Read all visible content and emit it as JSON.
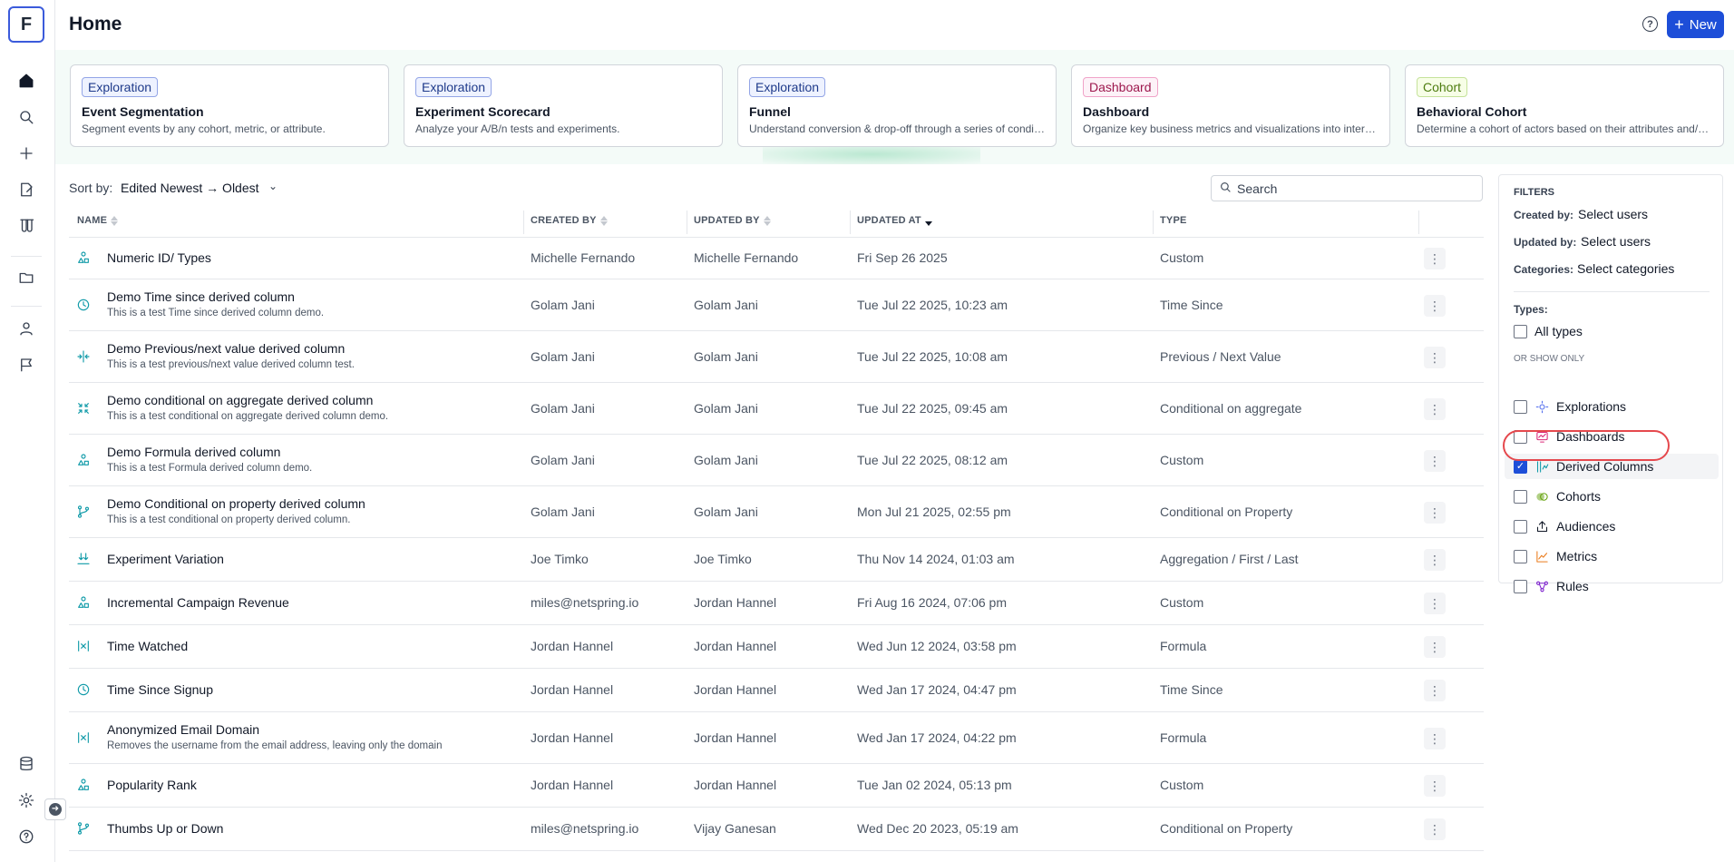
{
  "app": {
    "logo_letter": "F"
  },
  "header": {
    "title": "Home",
    "help_symbol": "?",
    "new_label": "New",
    "new_icon": "plus-icon"
  },
  "rail": {
    "icons": [
      "home-icon",
      "search-icon",
      "plus-icon",
      "notebook-icon",
      "lab-icon",
      "folder-icon",
      "user-icon",
      "flag-icon",
      "database-icon",
      "gear-icon",
      "help-icon"
    ],
    "expander_symbol": "➜"
  },
  "templates": [
    {
      "tag": "Exploration",
      "title": "Event Segmentation",
      "desc": "Segment events by any cohort, metric, or attribute."
    },
    {
      "tag": "Exploration",
      "title": "Experiment Scorecard",
      "desc": "Analyze your A/B/n tests and experiments."
    },
    {
      "tag": "Exploration",
      "title": "Funnel",
      "desc": "Understand conversion & drop-off through a series of conditi..."
    },
    {
      "tag": "Dashboard",
      "title": "Dashboard",
      "desc": "Organize key business metrics and visualizations into interacti..."
    },
    {
      "tag": "Cohort",
      "title": "Behavioral Cohort",
      "desc": "Determine a cohort of actors based on their attributes and/or ..."
    }
  ],
  "sort": {
    "label": "Sort by:",
    "value": "Edited Newest → Oldest"
  },
  "search": {
    "placeholder": "Search"
  },
  "table": {
    "columns": {
      "name": "NAME",
      "created_by": "CREATED BY",
      "updated_by": "UPDATED BY",
      "updated_at": "UPDATED AT",
      "type": "TYPE"
    },
    "rows": [
      {
        "icon": "custom-icon",
        "name": "Numeric ID/ Types",
        "desc": "",
        "created_by": "Michelle Fernando",
        "updated_by": "Michelle Fernando",
        "updated_at": "Fri Sep 26 2025",
        "type": "Custom"
      },
      {
        "icon": "clock-icon",
        "name": "Demo Time since derived column",
        "desc": "This is a test Time since derived column demo.",
        "created_by": "Golam Jani",
        "updated_by": "Golam Jani",
        "updated_at": "Tue Jul 22 2025, 10:23 am",
        "type": "Time Since"
      },
      {
        "icon": "prev-next-icon",
        "name": "Demo Previous/next value derived column",
        "desc": "This is a test previous/next value derived column test.",
        "created_by": "Golam Jani",
        "updated_by": "Golam Jani",
        "updated_at": "Tue Jul 22 2025, 10:08 am",
        "type": "Previous / Next Value"
      },
      {
        "icon": "aggregate-icon",
        "name": "Demo conditional on aggregate derived column",
        "desc": "This is a test conditional on aggregate derived column demo.",
        "created_by": "Golam Jani",
        "updated_by": "Golam Jani",
        "updated_at": "Tue Jul 22 2025, 09:45 am",
        "type": "Conditional on aggregate"
      },
      {
        "icon": "custom-icon",
        "name": "Demo Formula derived column",
        "desc": "This is a test Formula derived column demo.",
        "created_by": "Golam Jani",
        "updated_by": "Golam Jani",
        "updated_at": "Tue Jul 22 2025, 08:12 am",
        "type": "Custom"
      },
      {
        "icon": "branch-icon",
        "name": "Demo Conditional on property derived column",
        "desc": "This is a test conditional on property derived column.",
        "created_by": "Golam Jani",
        "updated_by": "Golam Jani",
        "updated_at": "Mon Jul 21 2025, 02:55 pm",
        "type": "Conditional on Property"
      },
      {
        "icon": "download-icon",
        "name": "Experiment Variation",
        "desc": "",
        "created_by": "Joe Timko",
        "updated_by": "Joe Timko",
        "updated_at": "Thu Nov 14 2024, 01:03 am",
        "type": "Aggregation / First / Last"
      },
      {
        "icon": "custom-icon",
        "name": "Incremental Campaign Revenue",
        "desc": "",
        "created_by": "miles@netspring.io",
        "updated_by": "Jordan Hannel",
        "updated_at": "Fri Aug 16 2024, 07:06 pm",
        "type": "Custom"
      },
      {
        "icon": "formula-icon",
        "name": "Time Watched",
        "desc": "",
        "created_by": "Jordan Hannel",
        "updated_by": "Jordan Hannel",
        "updated_at": "Wed Jun 12 2024, 03:58 pm",
        "type": "Formula"
      },
      {
        "icon": "clock-icon",
        "name": "Time Since Signup",
        "desc": "",
        "created_by": "Jordan Hannel",
        "updated_by": "Jordan Hannel",
        "updated_at": "Wed Jan 17 2024, 04:47 pm",
        "type": "Time Since"
      },
      {
        "icon": "formula-icon",
        "name": "Anonymized Email Domain",
        "desc": "Removes the username from the email address, leaving only the domain",
        "created_by": "Jordan Hannel",
        "updated_by": "Jordan Hannel",
        "updated_at": "Wed Jan 17 2024, 04:22 pm",
        "type": "Formula"
      },
      {
        "icon": "custom-icon",
        "name": "Popularity Rank",
        "desc": "",
        "created_by": "Jordan Hannel",
        "updated_by": "Jordan Hannel",
        "updated_at": "Tue Jan 02 2024, 05:13 pm",
        "type": "Custom"
      },
      {
        "icon": "branch-icon",
        "name": "Thumbs Up or Down",
        "desc": "",
        "created_by": "miles@netspring.io",
        "updated_by": "Vijay Ganesan",
        "updated_at": "Wed Dec 20 2023, 05:19 am",
        "type": "Conditional on Property"
      }
    ]
  },
  "filters": {
    "title": "FILTERS",
    "created_by": {
      "label": "Created by:",
      "value": "Select users"
    },
    "updated_by": {
      "label": "Updated by:",
      "value": "Select users"
    },
    "categories": {
      "label": "Categories:",
      "value": "Select categories"
    },
    "types_label": "Types:",
    "all_types": "All types",
    "or_show_only": "OR SHOW ONLY",
    "items": [
      {
        "label": "Explorations",
        "icon": "exploration-icon",
        "color": "#4f6bed",
        "checked": false
      },
      {
        "label": "Dashboards",
        "icon": "dashboard-icon",
        "color": "#db2777",
        "checked": false
      },
      {
        "label": "Derived Columns",
        "icon": "derived-column-icon",
        "color": "#0f9aa8",
        "checked": true
      },
      {
        "label": "Cohorts",
        "icon": "cohort-icon",
        "color": "#65a30d",
        "checked": false
      },
      {
        "label": "Audiences",
        "icon": "audience-icon",
        "color": "#111827",
        "checked": false
      },
      {
        "label": "Metrics",
        "icon": "metric-icon",
        "color": "#ea7c1e",
        "checked": false
      },
      {
        "label": "Rules",
        "icon": "rules-icon",
        "color": "#7e22ce",
        "checked": false
      }
    ]
  },
  "colors": {
    "accent": "#1d4ed8",
    "teal": "#0f9aa8",
    "highlight": "#e5484d"
  }
}
